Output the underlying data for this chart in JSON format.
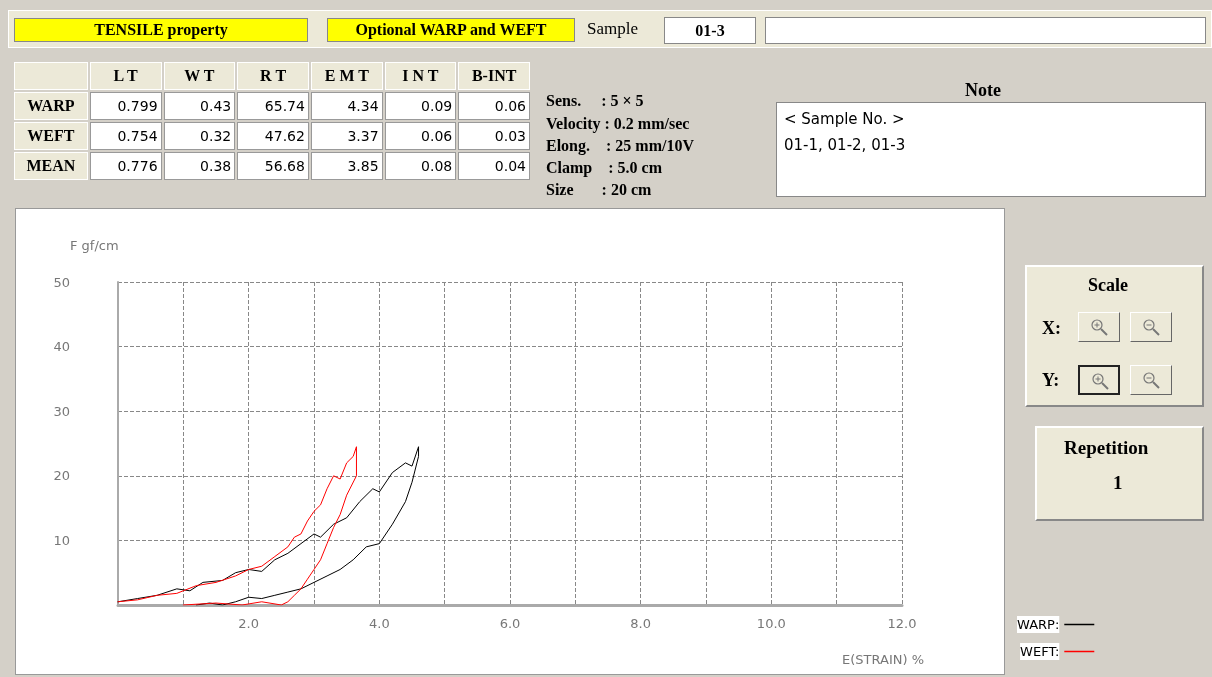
{
  "chart_data": [
    {
      "type": "other",
      "title": "TENSILE property",
      "subtitle": "Optional WARP and WEFT",
      "categories": [
        "L T",
        "W T",
        "R T",
        "E M T",
        "I N T",
        "B-INT"
      ],
      "y_categories": [
        "WARP",
        "WEFT",
        "MEAN"
      ],
      "cell_labels": [
        [
          "0.799",
          "0.43",
          "65.74",
          "4.34",
          "0.09",
          "0.06"
        ],
        [
          "0.754",
          "0.32",
          "47.62",
          "3.37",
          "0.06",
          "0.03"
        ],
        [
          "0.776",
          "0.38",
          "56.68",
          "3.85",
          "0.08",
          "0.04"
        ]
      ],
      "annotations": [
        "Sample",
        "01-3",
        "Sens.     : 5 × 5",
        "Velocity : 0.2 mm/sec",
        "Elong.    : 25 mm/10V",
        "Clamp    : 5.0 cm",
        "Size       : 20 cm",
        "Note",
        "< Sample No. >",
        "01-1, 01-2, 01-3",
        "Scale",
        "X:",
        "Y:",
        "Repetition",
        "1"
      ]
    },
    {
      "type": "line",
      "xlabel": "E(STRAIN) %",
      "ylabel": "F gf/cm",
      "xlim": [
        0,
        12
      ],
      "xticks": [
        {
          "value": 0,
          "label": null
        },
        {
          "value": 1,
          "label": null
        },
        {
          "value": 2,
          "label": "2.0"
        },
        {
          "value": 3,
          "label": null
        },
        {
          "value": 4,
          "label": "4.0"
        },
        {
          "value": 5,
          "label": null
        },
        {
          "value": 6,
          "label": "6.0"
        },
        {
          "value": 7,
          "label": null
        },
        {
          "value": 8,
          "label": "8.0"
        },
        {
          "value": 9,
          "label": null
        },
        {
          "value": 10,
          "label": "10.0"
        },
        {
          "value": 11,
          "label": null
        },
        {
          "value": 12,
          "label": "12.0"
        }
      ],
      "ylim": [
        0,
        50
      ],
      "yticks": [
        {
          "value": 0,
          "label": null
        },
        10,
        20,
        30,
        40,
        50
      ],
      "grid": true,
      "legend": "bottom right",
      "marker": "none",
      "line_style": "solid",
      "series": [
        {
          "name": "WARP:",
          "color": "#000000",
          "x": [
            0.0,
            0.3,
            0.6,
            0.9,
            1.1,
            1.3,
            1.6,
            1.8,
            2.0,
            2.2,
            2.4,
            2.6,
            2.8,
            3.0,
            3.1,
            3.3,
            3.5,
            3.7,
            3.9,
            4.0,
            4.2,
            4.4,
            4.5,
            4.6,
            4.6,
            4.5,
            4.4,
            4.2,
            4.0,
            3.8,
            3.6,
            3.4,
            3.2,
            3.0,
            2.8,
            2.6,
            2.4,
            2.2,
            2.0,
            1.8,
            1.6,
            1.4,
            1.2
          ],
          "values": [
            0.5,
            1,
            1.5,
            2.5,
            2.2,
            3.5,
            3.8,
            5,
            5.5,
            5.2,
            7,
            8,
            9.5,
            11,
            10.5,
            12.5,
            13.5,
            16,
            18,
            17.5,
            20.5,
            22,
            21.5,
            24.5,
            23,
            19,
            16,
            12.5,
            9.5,
            9,
            7,
            5.5,
            4.5,
            3.5,
            2.5,
            2,
            1.5,
            1,
            1.2,
            0.5,
            0,
            0.3,
            0
          ]
        },
        {
          "name": "WEFT:",
          "color": "#ff0000",
          "x": [
            0.0,
            0.3,
            0.6,
            0.9,
            1.2,
            1.5,
            1.8,
            2.0,
            2.2,
            2.4,
            2.6,
            2.7,
            2.8,
            2.9,
            3.0,
            3.1,
            3.2,
            3.3,
            3.4,
            3.5,
            3.6,
            3.65,
            3.65,
            3.5,
            3.4,
            3.3,
            3.2,
            3.1,
            3.0,
            2.9,
            2.8,
            2.7,
            2.6,
            2.5,
            2.2,
            1.9,
            1.5,
            1.0
          ],
          "values": [
            0.5,
            0.8,
            1.5,
            1.8,
            3,
            3.5,
            4.5,
            5.5,
            6,
            7.5,
            9,
            10.5,
            11,
            13,
            14.5,
            15.5,
            18,
            20,
            19.5,
            22,
            23,
            24.5,
            20,
            17,
            14,
            12,
            9.5,
            7,
            5.5,
            4,
            2.5,
            1.5,
            0.5,
            0,
            0.5,
            0,
            0.3,
            0
          ]
        }
      ]
    }
  ]
}
